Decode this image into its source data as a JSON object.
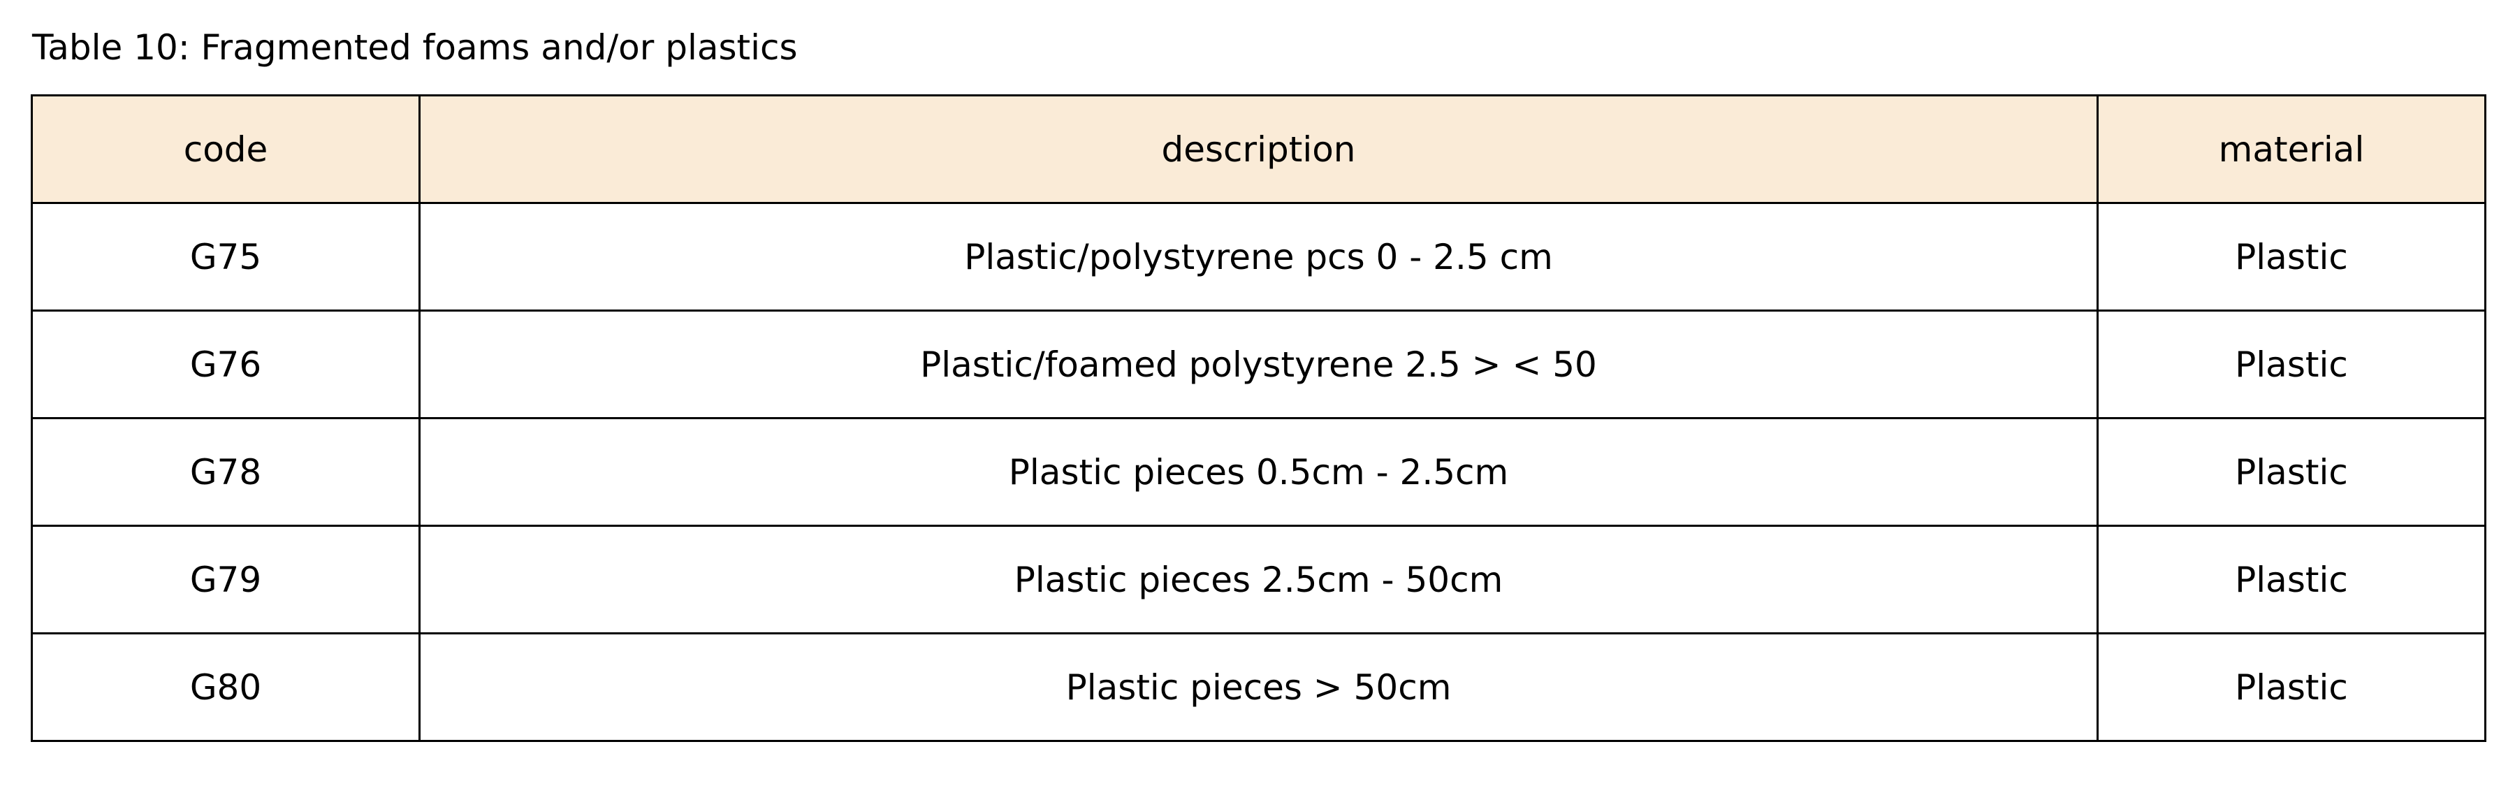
{
  "caption": "Table 10: Fragmented foams and/or plastics",
  "colors": {
    "header_background": "#FAEBD7",
    "border": "#000000",
    "text": "#000000"
  },
  "table": {
    "columns": [
      "code",
      "description",
      "material"
    ],
    "rows": [
      [
        "G75",
        "Plastic/polystyrene pcs 0 - 2.5 cm",
        "Plastic"
      ],
      [
        "G76",
        "Plastic/foamed polystyrene 2.5 > < 50",
        "Plastic"
      ],
      [
        "G78",
        "Plastic pieces 0.5cm - 2.5cm",
        "Plastic"
      ],
      [
        "G79",
        "Plastic pieces 2.5cm - 50cm",
        "Plastic"
      ],
      [
        "G80",
        "Plastic pieces > 50cm",
        "Plastic"
      ]
    ]
  }
}
